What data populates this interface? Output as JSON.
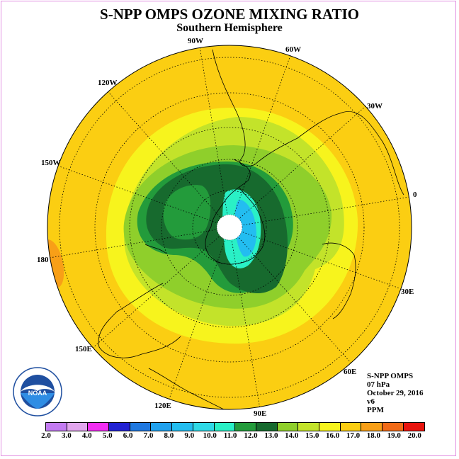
{
  "title": "S-NPP OMPS OZONE MIXING RATIO",
  "subtitle": "Southern Hemisphere",
  "longitude_labels": [
    "90W",
    "60W",
    "30W",
    "0",
    "30E",
    "60E",
    "90E",
    "120E",
    "150E",
    "180",
    "150W",
    "120W"
  ],
  "info": {
    "instrument": "S-NPP OMPS",
    "level": "07 hPa",
    "date": "October 29, 2016",
    "version": "v6",
    "units": "PPM"
  },
  "logo": {
    "name": "NOAA",
    "text": "NOAA",
    "ring_text": "NATIONAL OCEANIC AND ATMOSPHERIC ADMINISTRATION · U.S. DEPARTMENT OF COMMERCE"
  },
  "colorbar": {
    "labels": [
      "2.0",
      "3.0",
      "4.0",
      "5.0",
      "6.0",
      "7.0",
      "8.0",
      "9.0",
      "10.0",
      "11.0",
      "12.0",
      "13.0",
      "14.0",
      "15.0",
      "16.0",
      "17.0",
      "18.0",
      "19.0",
      "20.0"
    ],
    "colors": [
      "#c37bf2",
      "#e2a6ee",
      "#f22ef2",
      "#2222d2",
      "#1f78e0",
      "#20a1ee",
      "#23bdf0",
      "#2fd9e6",
      "#2af0c6",
      "#239b3b",
      "#176a2e",
      "#8fcf2b",
      "#c3e32a",
      "#f7f41d",
      "#fbce12",
      "#f89f17",
      "#f16a17",
      "#e8140e",
      "#7c4a2a"
    ]
  }
}
